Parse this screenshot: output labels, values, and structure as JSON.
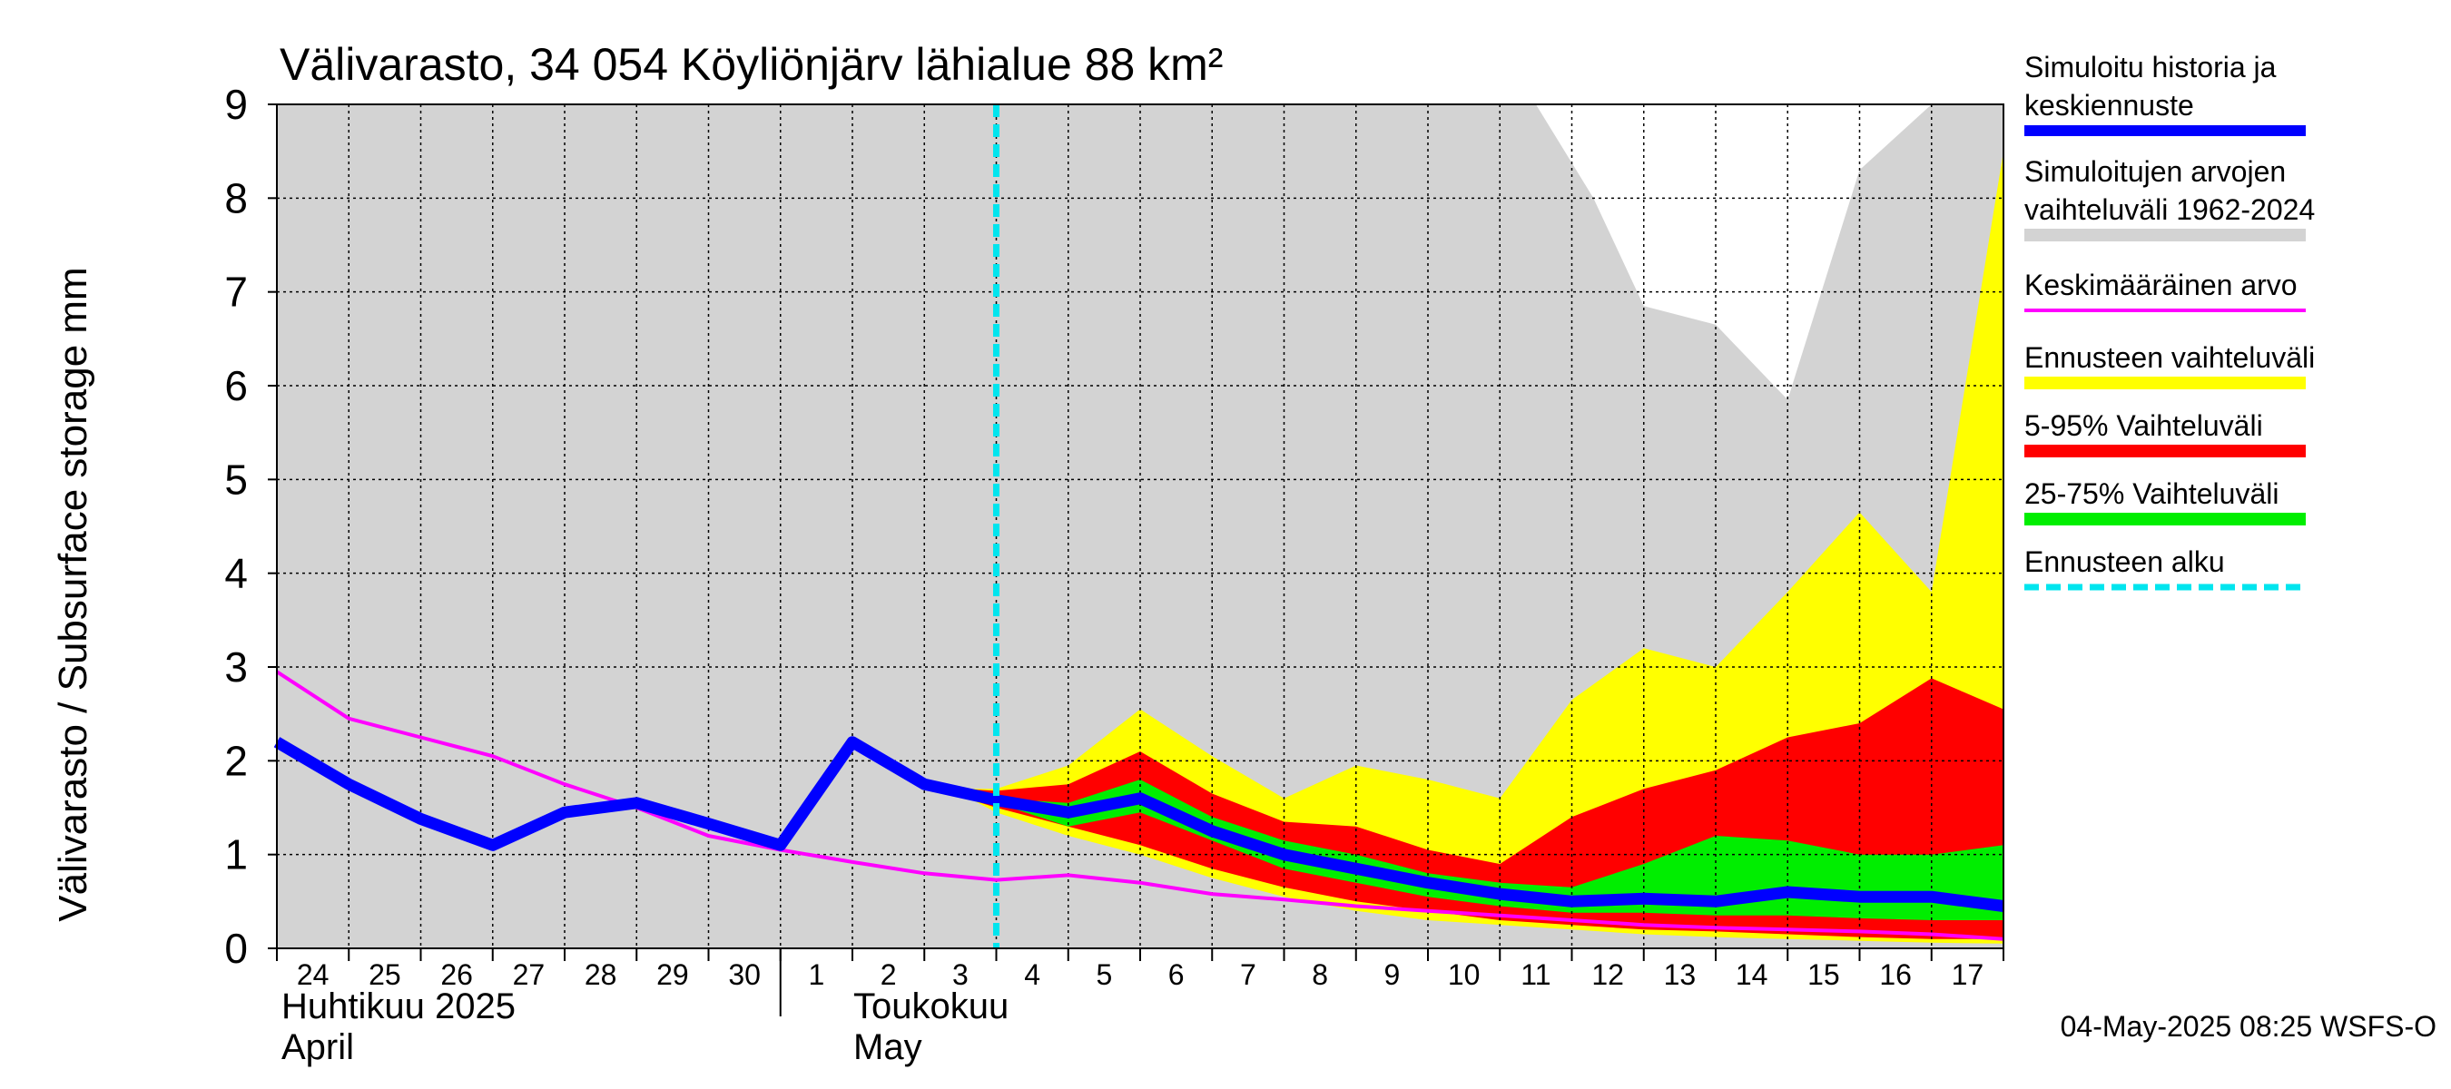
{
  "chart_data": {
    "type": "area",
    "title": "Välivarasto, 34 054 Köyliönjärv lähialue 88 km²",
    "ylabel": "Välivarasto / Subsurface storage  mm",
    "ylim": [
      0,
      9
    ],
    "yticks": [
      "0",
      "1",
      "2",
      "3",
      "4",
      "5",
      "6",
      "7",
      "8",
      "9"
    ],
    "grid": true,
    "legend_position": "right",
    "x_days": 24,
    "day_labels": [
      "24",
      "25",
      "26",
      "27",
      "28",
      "29",
      "30",
      "1",
      "2",
      "3",
      "4",
      "5",
      "6",
      "7",
      "8",
      "9",
      "10",
      "11",
      "12",
      "13",
      "14",
      "15",
      "16",
      "17"
    ],
    "month_labels": {
      "april_fi": "Huhtikuu  2025",
      "april_en": "April",
      "may_fi": "Toukokuu",
      "may_en": "May"
    },
    "forecast_start_day": 10,
    "timestamp": "04-May-2025 08:25 WSFS-O",
    "legend": [
      {
        "label_lines": [
          "Simuloitu historia ja",
          "keskiennuste"
        ],
        "color": "#0000ff",
        "style": "thick"
      },
      {
        "label_lines": [
          "Simuloitujen arvojen",
          "vaihteluväli 1962-2024"
        ],
        "color": "#d3d3d3",
        "style": "band"
      },
      {
        "label_lines": [
          "Keskimääräinen arvo"
        ],
        "color": "#ff00ff",
        "style": "thin"
      },
      {
        "label_lines": [
          "Ennusteen vaihteluväli"
        ],
        "color": "#ffff00",
        "style": "band"
      },
      {
        "label_lines": [
          "5-95% Vaihteluväli"
        ],
        "color": "#ff0000",
        "style": "band"
      },
      {
        "label_lines": [
          "25-75% Vaihteluväli"
        ],
        "color": "#00ee00",
        "style": "band"
      },
      {
        "label_lines": [
          "Ennusteen alku"
        ],
        "color": "#00e5ee",
        "style": "dashed"
      }
    ],
    "colors": {
      "hist_range": "#d3d3d3",
      "forecast_range": "#ffff00",
      "p5_95": "#ff0000",
      "p25_75": "#00ee00",
      "median": "#0000ff",
      "mean": "#ff00ff",
      "forecast_start": "#00e5ee",
      "grid": "#000000"
    },
    "series": {
      "hist_range": {
        "x": [
          0,
          17.5,
          18.3,
          19,
          20,
          21,
          22,
          23,
          24
        ],
        "upper": [
          9,
          9,
          8.0,
          6.85,
          6.65,
          5.85,
          8.3,
          9,
          9
        ],
        "lower": [
          0,
          0,
          0,
          0,
          0,
          0,
          0,
          0,
          0
        ]
      },
      "forecast_range": {
        "x": [
          9.0,
          9.5,
          10,
          11,
          12,
          13,
          14,
          15,
          16,
          17,
          18,
          19,
          20,
          21,
          22,
          23,
          24
        ],
        "upper": [
          1.75,
          1.7,
          1.7,
          1.95,
          2.55,
          2.05,
          1.6,
          1.95,
          1.8,
          1.6,
          2.65,
          3.2,
          3.0,
          3.8,
          4.65,
          3.8,
          8.5
        ],
        "lower": [
          1.75,
          1.65,
          1.45,
          1.2,
          1.0,
          0.75,
          0.55,
          0.4,
          0.3,
          0.25,
          0.2,
          0.15,
          0.12,
          0.1,
          0.08,
          0.06,
          0.05
        ]
      },
      "p5_95": {
        "x": [
          9.0,
          9.5,
          10,
          11,
          12,
          13,
          14,
          15,
          16,
          17,
          18,
          19,
          20,
          21,
          22,
          23,
          24
        ],
        "upper": [
          1.75,
          1.7,
          1.68,
          1.75,
          2.1,
          1.65,
          1.35,
          1.3,
          1.05,
          0.9,
          1.4,
          1.7,
          1.9,
          2.25,
          2.4,
          2.88,
          2.55
        ],
        "lower": [
          1.75,
          1.62,
          1.5,
          1.3,
          1.1,
          0.85,
          0.65,
          0.5,
          0.4,
          0.3,
          0.25,
          0.2,
          0.18,
          0.15,
          0.12,
          0.1,
          0.1
        ]
      },
      "p25_75": {
        "x": [
          9.0,
          9.5,
          10,
          11,
          12,
          13,
          14,
          15,
          16,
          17,
          18,
          19,
          20,
          21,
          22,
          23,
          24
        ],
        "upper": [
          1.75,
          1.7,
          1.6,
          1.55,
          1.8,
          1.4,
          1.15,
          1.0,
          0.8,
          0.7,
          0.65,
          0.9,
          1.2,
          1.15,
          1.0,
          1.0,
          1.1
        ],
        "lower": [
          1.75,
          1.65,
          1.55,
          1.3,
          1.45,
          1.15,
          0.85,
          0.7,
          0.55,
          0.45,
          0.38,
          0.38,
          0.35,
          0.35,
          0.32,
          0.3,
          0.3
        ]
      },
      "median": {
        "x": [
          0,
          1,
          2,
          3,
          4,
          5,
          6,
          7,
          8,
          9,
          10,
          11,
          12,
          13,
          14,
          15,
          16,
          17,
          18,
          19,
          20,
          21,
          22,
          23,
          24
        ],
        "y": [
          2.2,
          1.75,
          1.38,
          1.1,
          1.45,
          1.55,
          1.33,
          1.1,
          2.2,
          1.75,
          1.58,
          1.45,
          1.6,
          1.25,
          1.0,
          0.85,
          0.7,
          0.58,
          0.5,
          0.53,
          0.5,
          0.6,
          0.55,
          0.55,
          0.45
        ]
      },
      "mean": {
        "x": [
          0,
          1,
          2,
          3,
          4,
          5,
          6,
          7,
          8,
          9,
          10,
          11,
          12,
          13,
          14,
          15,
          16,
          17,
          18,
          19,
          20,
          21,
          22,
          23,
          24
        ],
        "y": [
          2.95,
          2.45,
          2.25,
          2.05,
          1.75,
          1.5,
          1.2,
          1.05,
          0.92,
          0.8,
          0.73,
          0.78,
          0.7,
          0.58,
          0.52,
          0.45,
          0.4,
          0.35,
          0.3,
          0.25,
          0.22,
          0.2,
          0.18,
          0.15,
          0.1
        ]
      }
    }
  }
}
